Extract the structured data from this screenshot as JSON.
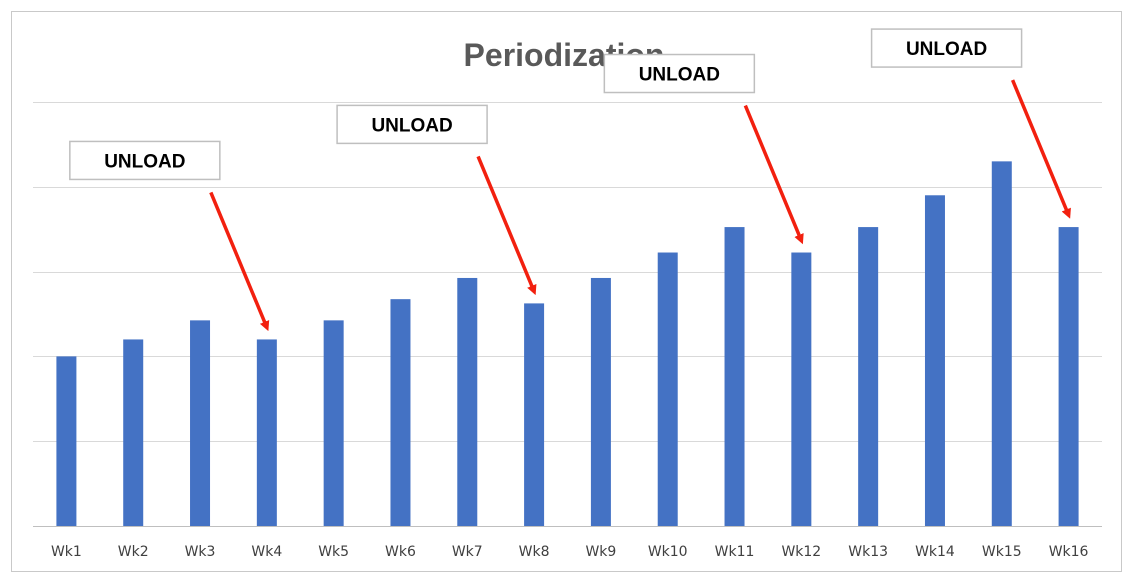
{
  "chart_data": {
    "type": "bar",
    "title": "Periodization",
    "xlabel": "",
    "ylabel": "",
    "categories": [
      "Wk1",
      "Wk2",
      "Wk3",
      "Wk4",
      "Wk5",
      "Wk6",
      "Wk7",
      "Wk8",
      "Wk9",
      "Wk10",
      "Wk11",
      "Wk12",
      "Wk13",
      "Wk14",
      "Wk15",
      "Wk16"
    ],
    "values": [
      40,
      44,
      48.5,
      44,
      48.5,
      53.5,
      58.5,
      52.5,
      58.5,
      64.5,
      70.5,
      64.5,
      70.5,
      78,
      86,
      70.5
    ],
    "ylim": [
      0,
      100
    ],
    "y_ticks_labeled": false,
    "grid": true,
    "bar_color": "#4472C4",
    "annotations": [
      {
        "text": "UNLOAD",
        "target": "Wk4"
      },
      {
        "text": "UNLOAD",
        "target": "Wk8"
      },
      {
        "text": "UNLOAD",
        "target": "Wk12"
      },
      {
        "text": "UNLOAD",
        "target": "Wk16"
      }
    ],
    "annotation_arrow_color": "#F2200F"
  }
}
